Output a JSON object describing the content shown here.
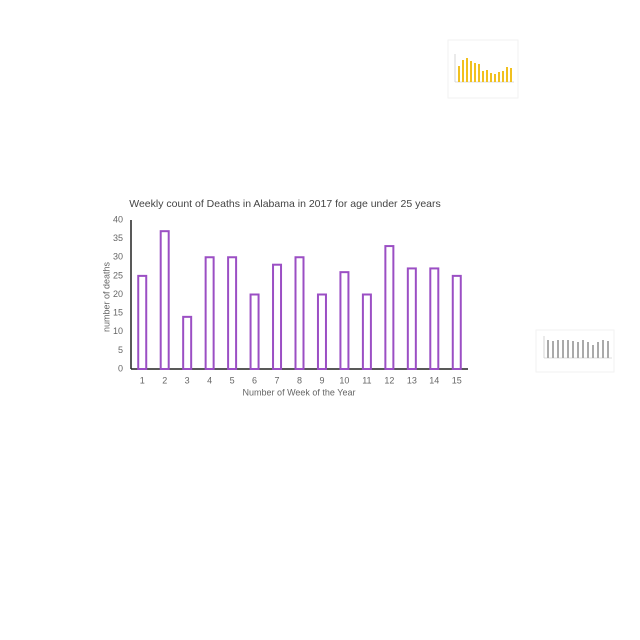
{
  "chart_data": {
    "type": "bar",
    "title": "Weekly count of Deaths in Alabama in 2017 for age under 25 years",
    "x_label": "Number of Week of the Year",
    "y_label": "number of deaths",
    "categories": [
      "1",
      "2",
      "3",
      "4",
      "5",
      "6",
      "7",
      "8",
      "9",
      "10",
      "11",
      "12",
      "13",
      "14",
      "15"
    ],
    "values": [
      25,
      37,
      14,
      30,
      30,
      20,
      28,
      30,
      20,
      26,
      20,
      33,
      27,
      27,
      25
    ],
    "color": "#9b4fc4",
    "ylim": [
      0,
      40
    ],
    "yticks": [
      0,
      5,
      10,
      15,
      20,
      25,
      30,
      35,
      40
    ],
    "grid": false
  }
}
